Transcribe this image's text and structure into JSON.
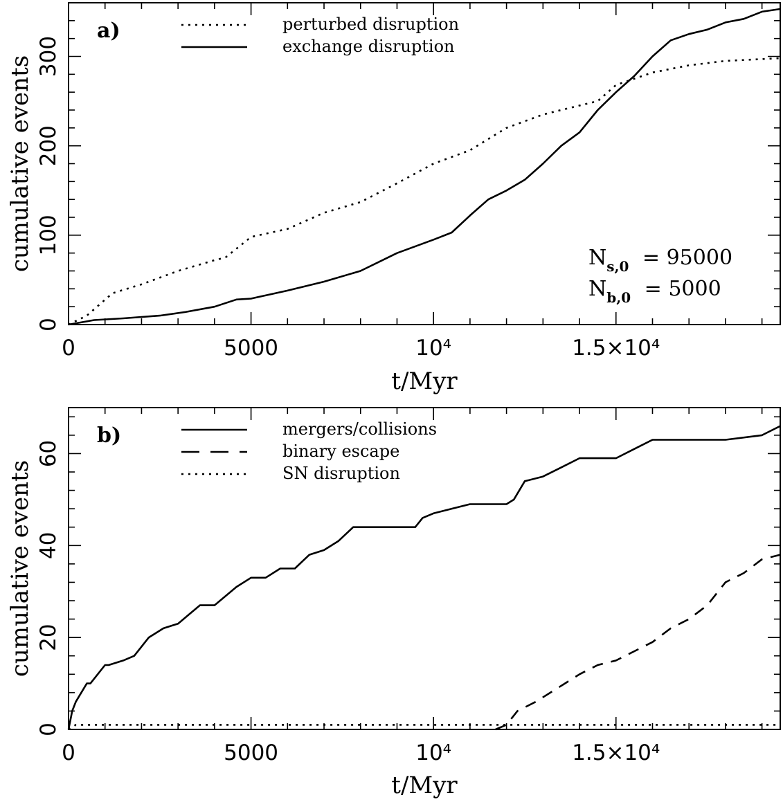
{
  "chart_data": [
    {
      "type": "line",
      "panel_label": "a)",
      "xlabel": "t/Myr",
      "ylabel": "cumulative events",
      "xlim": [
        0,
        19500
      ],
      "ylim": [
        0,
        360
      ],
      "xticks": [
        0,
        5000,
        10000,
        15000
      ],
      "xtick_labels": [
        "0",
        "5000",
        "10⁴",
        "1.5×10⁴"
      ],
      "yticks": [
        0,
        100,
        200,
        300
      ],
      "ytick_labels": [
        "0",
        "100",
        "200",
        "300"
      ],
      "legend_position": "top-left",
      "annotations": [
        {
          "base": "N",
          "sub": "s,0",
          "text": "= 95000"
        },
        {
          "base": "N",
          "sub": "b,0",
          "text": "=   5000"
        }
      ],
      "series": [
        {
          "name": "perturbed disruption",
          "style": "dotted",
          "x": [
            0,
            500,
            1200,
            2000,
            3000,
            4000,
            4300,
            5000,
            6000,
            7000,
            8000,
            9000,
            10000,
            11000,
            12000,
            13000,
            14000,
            14500,
            15000,
            16000,
            17000,
            18000,
            19500
          ],
          "y": [
            0,
            10,
            35,
            45,
            60,
            72,
            75,
            98,
            107,
            125,
            137,
            158,
            180,
            195,
            220,
            235,
            245,
            250,
            268,
            282,
            290,
            295,
            298
          ]
        },
        {
          "name": "exchange disruption",
          "style": "solid",
          "x": [
            0,
            700,
            1500,
            2500,
            3200,
            4000,
            4600,
            5000,
            6000,
            7000,
            8000,
            9000,
            10000,
            10500,
            11000,
            11500,
            12000,
            12500,
            13000,
            13500,
            14000,
            14500,
            15000,
            15500,
            16000,
            16500,
            17000,
            17500,
            18000,
            18500,
            19000,
            19500
          ],
          "y": [
            0,
            5,
            7,
            10,
            14,
            20,
            28,
            29,
            38,
            48,
            60,
            80,
            95,
            103,
            122,
            140,
            150,
            162,
            180,
            200,
            215,
            240,
            260,
            278,
            300,
            318,
            325,
            330,
            338,
            342,
            350,
            353
          ]
        }
      ]
    },
    {
      "type": "line",
      "panel_label": "b)",
      "xlabel": "t/Myr",
      "ylabel": "cumulative events",
      "xlim": [
        0,
        19500
      ],
      "ylim": [
        0,
        70
      ],
      "xticks": [
        0,
        5000,
        10000,
        15000
      ],
      "xtick_labels": [
        "0",
        "5000",
        "10⁴",
        "1.5×10⁴"
      ],
      "yticks": [
        0,
        20,
        40,
        60
      ],
      "ytick_labels": [
        "0",
        "20",
        "40",
        "60"
      ],
      "legend_position": "top-left",
      "series": [
        {
          "name": "mergers/collisions",
          "style": "solid",
          "x": [
            0,
            100,
            200,
            500,
            600,
            1000,
            1100,
            1500,
            1800,
            2000,
            2200,
            2600,
            3000,
            3300,
            3600,
            4000,
            4300,
            4600,
            5000,
            5400,
            5800,
            6200,
            6600,
            7000,
            7400,
            7800,
            8200,
            9500,
            9700,
            10000,
            10500,
            11000,
            11500,
            12000,
            12200,
            12500,
            13000,
            13500,
            14000,
            15000,
            15500,
            16000,
            17000,
            18000,
            19000,
            19500
          ],
          "y": [
            0,
            4,
            6,
            10,
            10,
            14,
            14,
            15,
            16,
            18,
            20,
            22,
            23,
            25,
            27,
            27,
            29,
            31,
            33,
            33,
            35,
            35,
            38,
            39,
            41,
            44,
            44,
            44,
            46,
            47,
            48,
            49,
            49,
            49,
            50,
            54,
            55,
            57,
            59,
            59,
            61,
            63,
            63,
            63,
            64,
            66
          ]
        },
        {
          "name": "binary escape",
          "style": "dashed",
          "x": [
            11700,
            12000,
            12300,
            12800,
            13200,
            13600,
            14000,
            14500,
            15000,
            15500,
            16000,
            16500,
            17000,
            17500,
            18000,
            18500,
            19000,
            19500
          ],
          "y": [
            0,
            1,
            4,
            6,
            8,
            10,
            12,
            14,
            15,
            17,
            19,
            22,
            24,
            27,
            32,
            34,
            37,
            38
          ]
        },
        {
          "name": "SN disruption",
          "style": "dotted",
          "x": [
            0,
            200,
            19500
          ],
          "y": [
            0,
            1,
            1
          ]
        }
      ]
    }
  ]
}
